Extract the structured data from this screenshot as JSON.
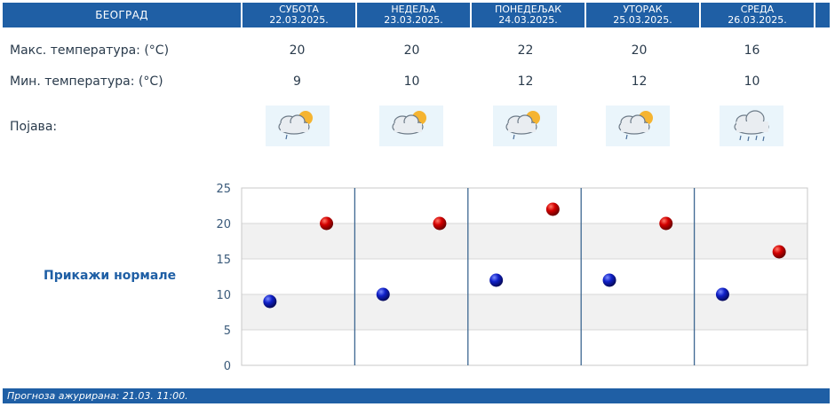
{
  "header": {
    "city": "БЕОГРАД",
    "days": [
      {
        "name": "СУБОТА",
        "date": "22.03.2025."
      },
      {
        "name": "НЕДЕЉА",
        "date": "23.03.2025."
      },
      {
        "name": "ПОНЕДЕЉАК",
        "date": "24.03.2025."
      },
      {
        "name": "УТОРАК",
        "date": "25.03.2025."
      },
      {
        "name": "СРЕДА",
        "date": "26.03.2025."
      }
    ]
  },
  "rows": {
    "max_label": "Макс. температура: (°C)",
    "min_label": "Мин. температура: (°C)",
    "phenomenon_label": "Појава:",
    "max_values": [
      "20",
      "20",
      "22",
      "20",
      "16"
    ],
    "min_values": [
      "9",
      "10",
      "12",
      "12",
      "10"
    ]
  },
  "icons": [
    "partly-cloudy-light-rain-icon",
    "partly-cloudy-light-rain-icon",
    "partly-cloudy-light-rain-icon",
    "partly-cloudy-light-rain-icon",
    "cloudy-rain-icon"
  ],
  "normals_link": "Прикажи нормале",
  "footer": "Прогноза ажурирана:  21.03. 11:00.",
  "colors": {
    "accent": "#1f5fa5",
    "max_marker": "#cc0000",
    "min_marker": "#0a1aa8"
  },
  "chart_data": {
    "type": "scatter",
    "categories": [
      "22.03.2025.",
      "23.03.2025.",
      "24.03.2025.",
      "25.03.2025.",
      "26.03.2025."
    ],
    "series": [
      {
        "values": [
          9,
          10,
          12,
          12,
          10
        ]
      },
      {
        "values": [
          20,
          20,
          22,
          20,
          16
        ]
      }
    ],
    "ylim": [
      0,
      25
    ],
    "yticks": [
      "0",
      "5",
      "10",
      "15",
      "20",
      "25"
    ],
    "grid": true
  }
}
